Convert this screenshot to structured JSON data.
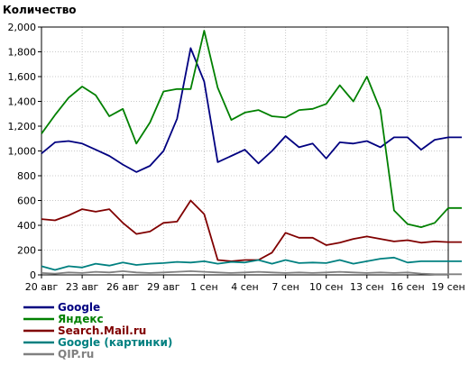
{
  "chart_data": {
    "type": "line",
    "ylabel": "Количество",
    "xlabel": "",
    "ylim": [
      0,
      2000
    ],
    "yticks": [
      "0",
      "200",
      "400",
      "600",
      "800",
      "1,000",
      "1,200",
      "1,400",
      "1,600",
      "1,800",
      "2,000"
    ],
    "ytick_values": [
      0,
      200,
      400,
      600,
      800,
      1000,
      1200,
      1400,
      1600,
      1800,
      2000
    ],
    "xticks": [
      "20 авг",
      "23 авг",
      "26 авг",
      "29 авг",
      "1 сен",
      "4 сен",
      "7 сен",
      "10 сен",
      "13 сен",
      "16 сен",
      "19 сен"
    ],
    "xtick_days": [
      0,
      3,
      6,
      9,
      12,
      15,
      18,
      21,
      24,
      27,
      30
    ],
    "x": [
      "20 авг",
      "21 авг",
      "22 авг",
      "23 авг",
      "24 авг",
      "25 авг",
      "26 авг",
      "27 авг",
      "28 авг",
      "29 авг",
      "30 авг",
      "31 авг",
      "1 сен",
      "2 сен",
      "3 сен",
      "4 сен",
      "5 сен",
      "6 сен",
      "7 сен",
      "8 сен",
      "9 сен",
      "10 сен",
      "11 сен",
      "12 сен",
      "13 сен",
      "14 сен",
      "15 сен",
      "16 сен",
      "17 сен",
      "18 сен",
      "19 сен",
      "20 сен"
    ],
    "grid": true,
    "legend_position": "bottom-left",
    "series": [
      {
        "name": "Google",
        "color": "#000080",
        "values": [
          980,
          1070,
          1080,
          1060,
          1010,
          960,
          890,
          830,
          880,
          1000,
          1260,
          1830,
          1560,
          910,
          960,
          1010,
          900,
          1000,
          1120,
          1030,
          1060,
          940,
          1070,
          1060,
          1080,
          1030,
          1110,
          1110,
          1010,
          1090,
          1110,
          1110
        ]
      },
      {
        "name": "Яндекс",
        "color": "#008000",
        "values": [
          1140,
          1290,
          1430,
          1520,
          1450,
          1280,
          1340,
          1060,
          1230,
          1480,
          1500,
          1500,
          1970,
          1510,
          1250,
          1310,
          1330,
          1280,
          1270,
          1330,
          1340,
          1380,
          1530,
          1400,
          1600,
          1330,
          520,
          410,
          385,
          420,
          540,
          540
        ]
      },
      {
        "name": "Search.Mail.ru",
        "color": "#800000",
        "values": [
          450,
          440,
          480,
          530,
          510,
          530,
          420,
          330,
          350,
          420,
          430,
          600,
          490,
          120,
          110,
          120,
          120,
          180,
          340,
          300,
          300,
          240,
          260,
          290,
          310,
          290,
          270,
          280,
          260,
          270,
          265,
          265
        ]
      },
      {
        "name": "Google (картинки)",
        "color": "#008080",
        "values": [
          70,
          40,
          70,
          60,
          90,
          75,
          100,
          80,
          90,
          95,
          105,
          100,
          110,
          90,
          105,
          100,
          120,
          90,
          120,
          95,
          100,
          95,
          120,
          90,
          110,
          130,
          140,
          100,
          110,
          110,
          110,
          110
        ]
      },
      {
        "name": "QIP.ru",
        "color": "#808080",
        "values": [
          15,
          10,
          20,
          15,
          25,
          20,
          30,
          20,
          15,
          20,
          25,
          30,
          25,
          20,
          15,
          20,
          25,
          20,
          15,
          20,
          15,
          20,
          25,
          20,
          15,
          20,
          15,
          20,
          10,
          5,
          5,
          5
        ]
      }
    ]
  }
}
